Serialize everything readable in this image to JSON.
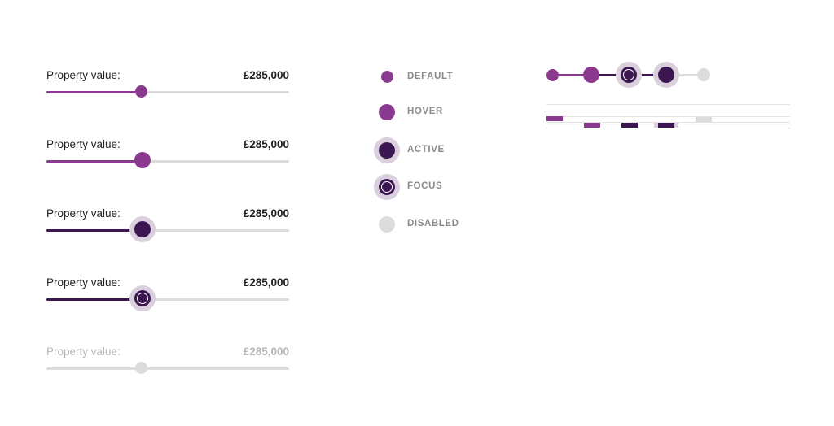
{
  "colors": {
    "default": "#8a3a8e",
    "active": "#3c1650",
    "halo": "#d9cfdd",
    "track": "#dcdcdc",
    "disabled": "#dcdcdc",
    "label": "#222222",
    "disabled_text": "#b7b7b7"
  },
  "sliders": [
    {
      "state": "default",
      "label": "Property value:",
      "value": "£285,000",
      "fill_percent": 39
    },
    {
      "state": "hover",
      "label": "Property value:",
      "value": "£285,000",
      "fill_percent": 40
    },
    {
      "state": "active",
      "label": "Property value:",
      "value": "£285,000",
      "fill_percent": 40
    },
    {
      "state": "focus",
      "label": "Property value:",
      "value": "£285,000",
      "fill_percent": 40
    },
    {
      "state": "disabled",
      "label": "Property value:",
      "value": "£285,000",
      "fill_percent": 39
    }
  ],
  "legend": [
    {
      "state": "default",
      "label": "DEFAULT"
    },
    {
      "state": "hover",
      "label": "HOVER"
    },
    {
      "state": "active",
      "label": "ACTIVE"
    },
    {
      "state": "focus",
      "label": "FOCUS"
    },
    {
      "state": "disabled",
      "label": "DISABLED"
    }
  ]
}
